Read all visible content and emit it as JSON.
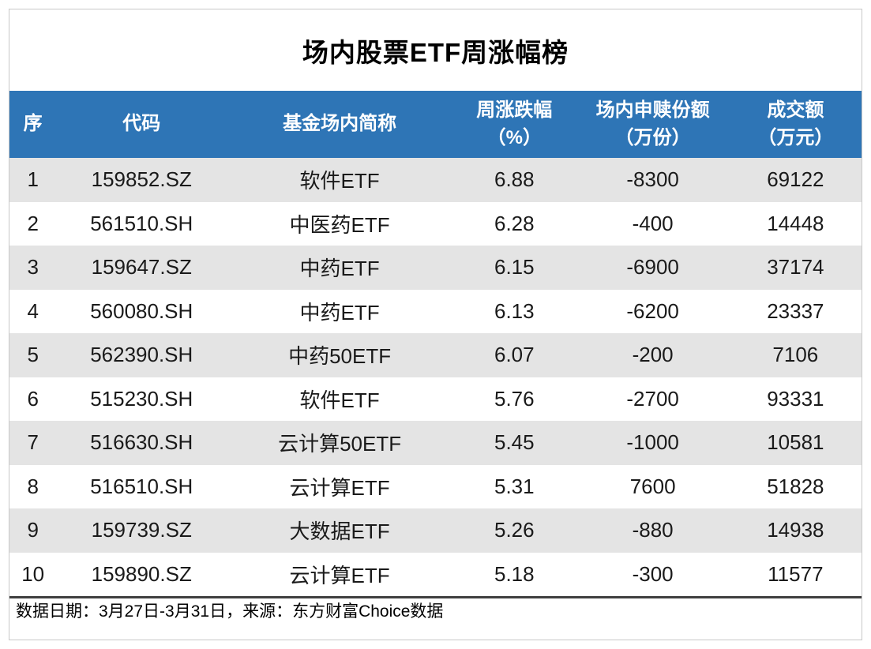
{
  "colors": {
    "header_bg": "#2E75B6",
    "header_text": "#FFFFFF",
    "stripe_row_bg": "#E4E4E4",
    "outer_border": "#C8C8C8",
    "footer_rule": "#3F3F3F"
  },
  "chart_data": {
    "type": "table",
    "title": "场内股票ETF周涨幅榜",
    "columns": [
      {
        "label": "序",
        "sub": ""
      },
      {
        "label": "代码",
        "sub": ""
      },
      {
        "label": "基金场内简称",
        "sub": ""
      },
      {
        "label": "周涨跌幅",
        "sub": "（%）"
      },
      {
        "label": "场内申赎份额",
        "sub": "（万份）"
      },
      {
        "label": "成交额",
        "sub": "（万元）"
      }
    ],
    "rows": [
      [
        "1",
        "159852.SZ",
        "软件ETF",
        "6.88",
        "-8300",
        "69122"
      ],
      [
        "2",
        "561510.SH",
        "中医药ETF",
        "6.28",
        "-400",
        "14448"
      ],
      [
        "3",
        "159647.SZ",
        "中药ETF",
        "6.15",
        "-6900",
        "37174"
      ],
      [
        "4",
        "560080.SH",
        "中药ETF",
        "6.13",
        "-6200",
        "23337"
      ],
      [
        "5",
        "562390.SH",
        "中药50ETF",
        "6.07",
        "-200",
        "7106"
      ],
      [
        "6",
        "515230.SH",
        "软件ETF",
        "5.76",
        "-2700",
        "93331"
      ],
      [
        "7",
        "516630.SH",
        "云计算50ETF",
        "5.45",
        "-1000",
        "10581"
      ],
      [
        "8",
        "516510.SH",
        "云计算ETF",
        "5.31",
        "7600",
        "51828"
      ],
      [
        "9",
        "159739.SZ",
        "大数据ETF",
        "5.26",
        "-880",
        "14938"
      ],
      [
        "10",
        "159890.SZ",
        "云计算ETF",
        "5.18",
        "-300",
        "11577"
      ]
    ],
    "footnote": "数据日期：3月27日-3月31日，来源：东方财富Choice数据"
  }
}
